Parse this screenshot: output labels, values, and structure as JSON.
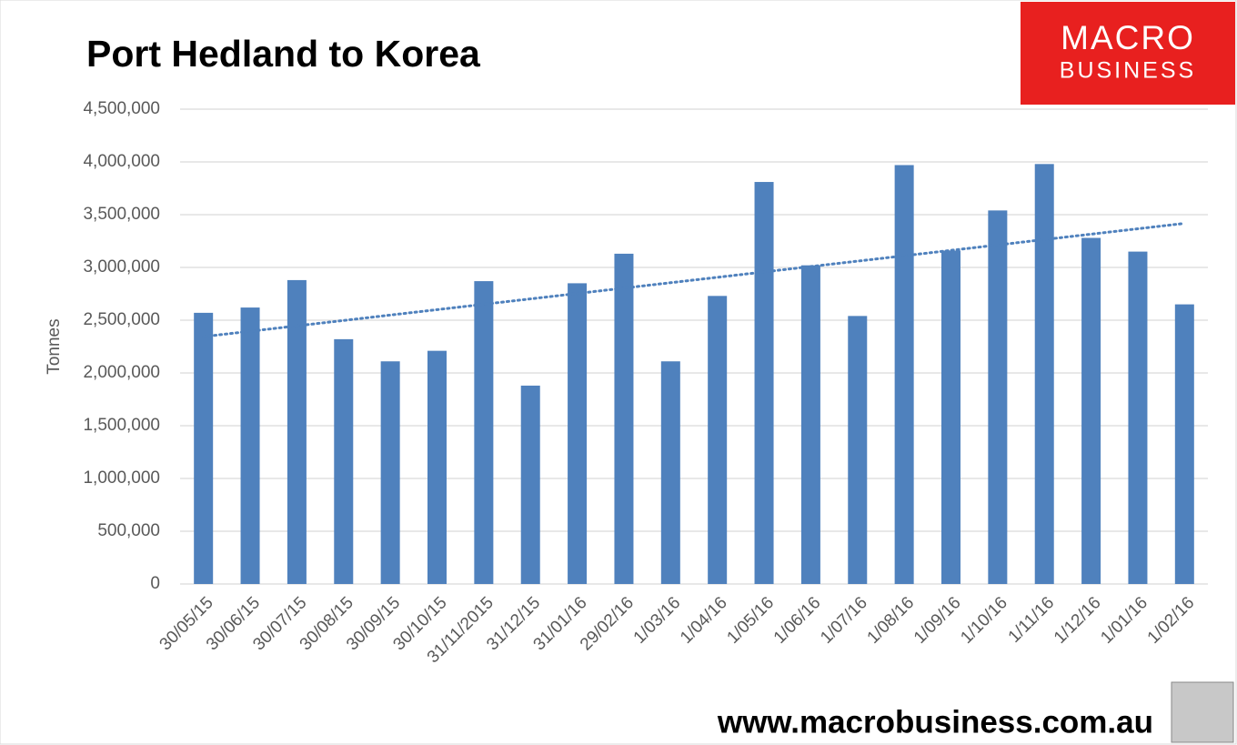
{
  "chart_data": {
    "type": "bar",
    "title": "Port Hedland to Korea",
    "y_label": "Tonnes",
    "categories": [
      "30/05/15",
      "30/06/15",
      "30/07/15",
      "30/08/15",
      "30/09/15",
      "30/10/15",
      "31/11/2015",
      "31/12/15",
      "31/01/16",
      "29/02/16",
      "1/03/16",
      "1/04/16",
      "1/05/16",
      "1/06/16",
      "1/07/16",
      "1/08/16",
      "1/09/16",
      "1/10/16",
      "1/11/16",
      "1/12/16",
      "1/01/16",
      "1/02/16"
    ],
    "values": [
      2570000,
      2620000,
      2880000,
      2320000,
      2110000,
      2210000,
      2870000,
      1880000,
      2850000,
      3130000,
      2110000,
      2730000,
      3810000,
      3020000,
      2540000,
      3970000,
      3160000,
      3540000,
      3980000,
      3280000,
      3150000,
      2650000
    ],
    "color": "#4f81bd",
    "trendline": true,
    "grid": true,
    "ylim": [
      0,
      4500000
    ],
    "yticks": [
      0,
      {
        "value": 500000,
        "label": "500,000"
      },
      {
        "value": 1000000,
        "label": "1,000,000"
      },
      {
        "value": 1500000,
        "label": "1,500,000"
      },
      {
        "value": 2000000,
        "label": "2,000,000"
      },
      {
        "value": 2500000,
        "label": "2,500,000"
      },
      {
        "value": 3000000,
        "label": "3,000,000"
      },
      {
        "value": 3500000,
        "label": "3,500,000"
      },
      {
        "value": 4000000,
        "label": "4,000,000"
      },
      {
        "value": 4500000,
        "label": "4,500,000"
      }
    ]
  },
  "logo": {
    "line1": "MACRO",
    "line2": "BUSINESS"
  },
  "footer": "www.macrobusiness.com.au"
}
